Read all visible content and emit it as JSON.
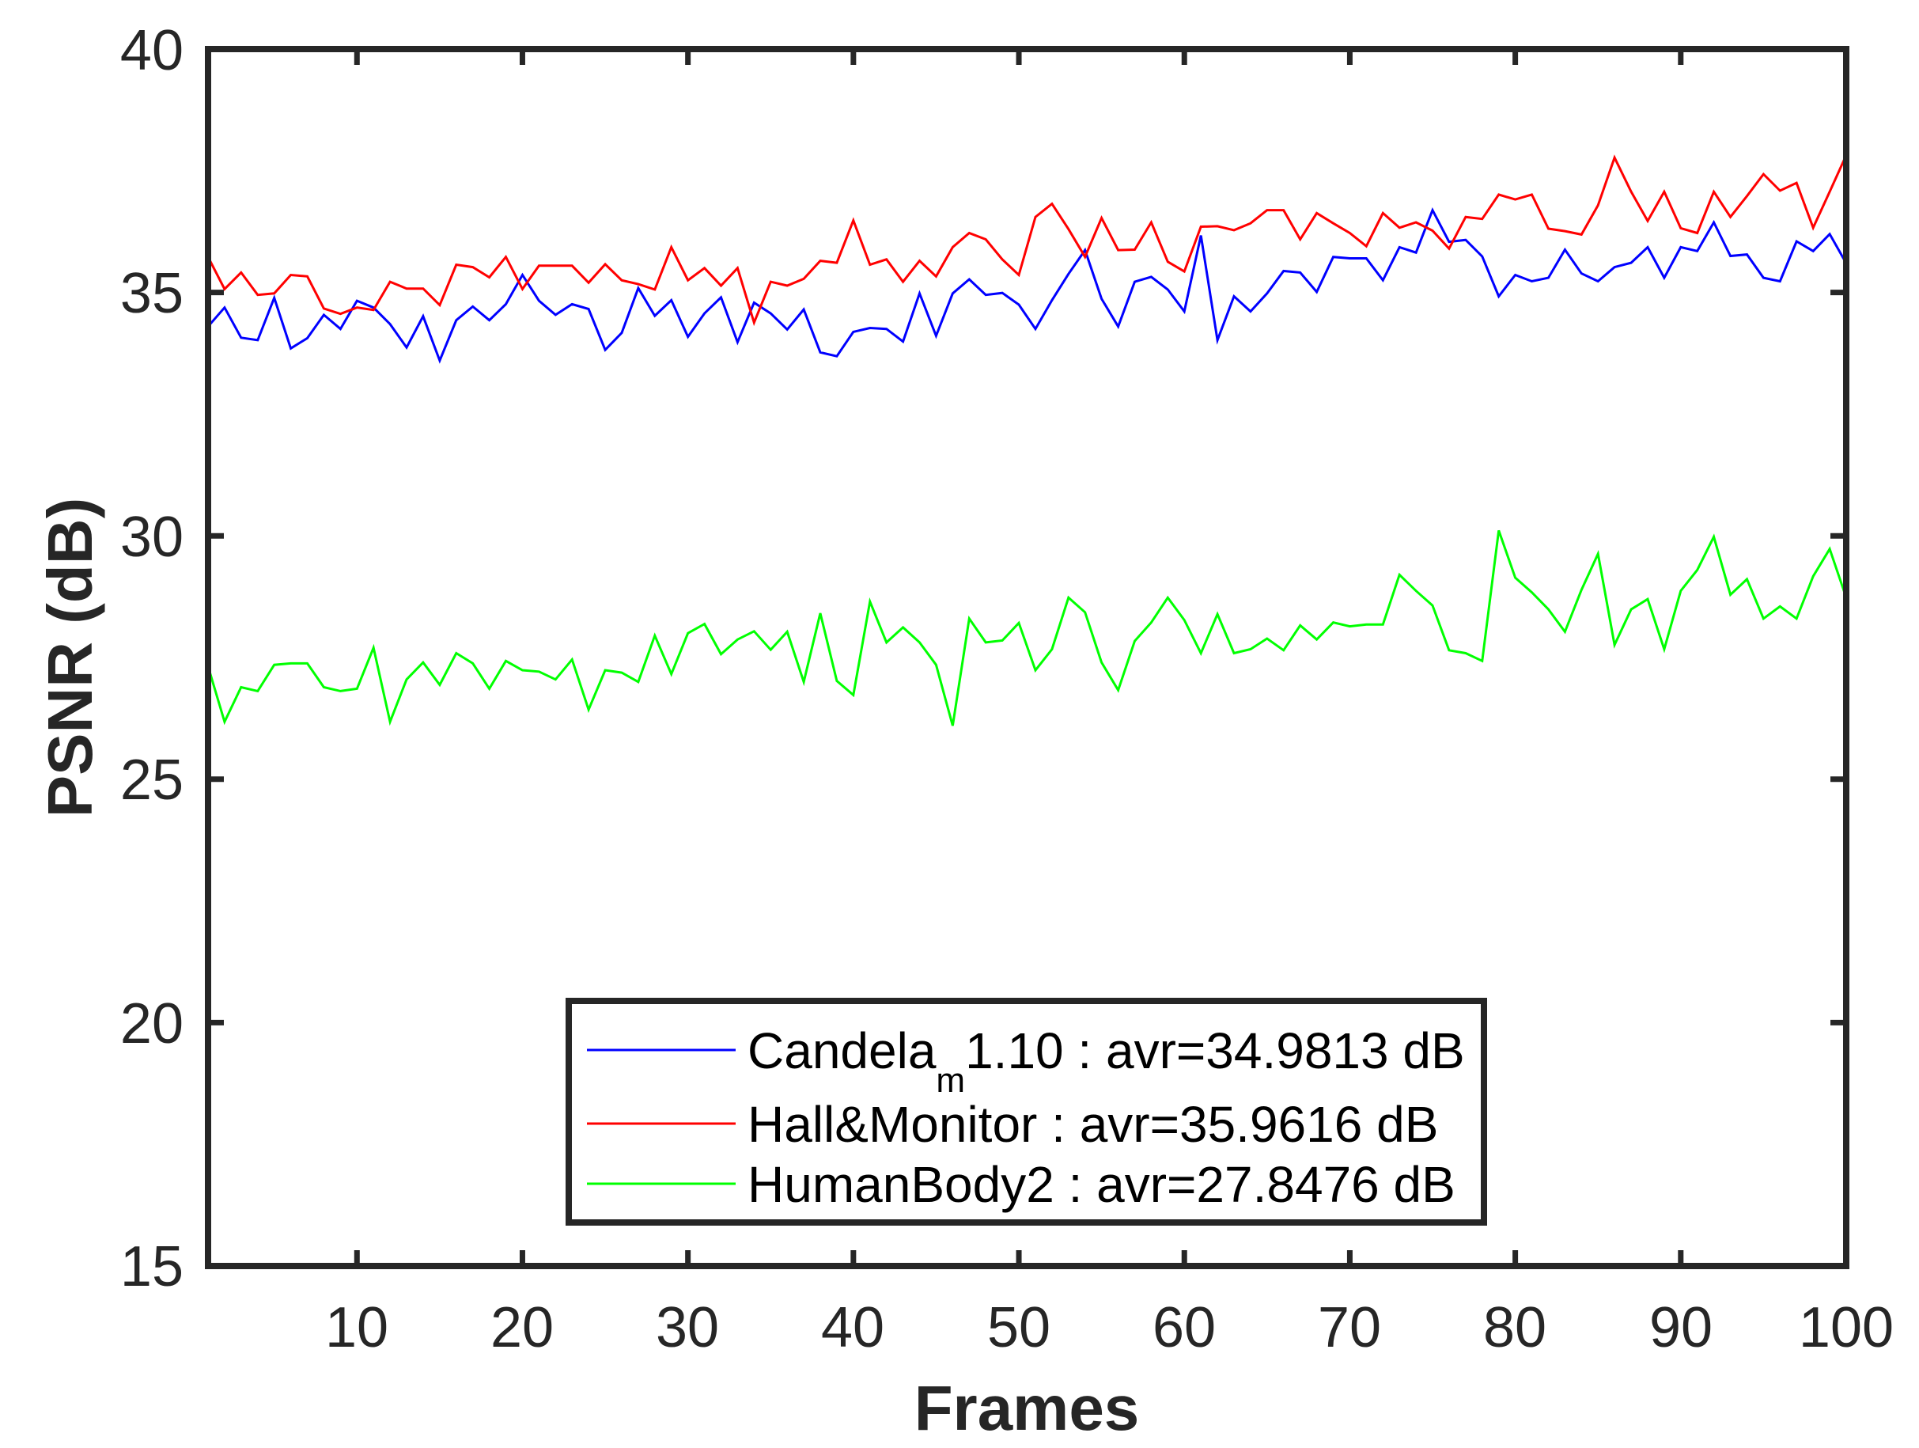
{
  "chart_data": {
    "type": "line",
    "title": "",
    "xlabel": "Frames",
    "ylabel": "PSNR (dB)",
    "xlim": [
      1,
      100
    ],
    "ylim": [
      15,
      40
    ],
    "grid": false,
    "legend_position": "lower center (inside axes)",
    "x_ticks": [
      10,
      20,
      30,
      40,
      50,
      60,
      70,
      80,
      90,
      100
    ],
    "y_ticks": [
      15,
      20,
      25,
      30,
      35,
      40
    ],
    "x_start": 1,
    "series": [
      {
        "name": "Candela_m1.10",
        "legend_label": "Candela_m1.10 : avr=34.9813 dB",
        "legend_main": "Candela",
        "legend_sub": "m",
        "legend_rest": "1.10 : avr=34.9813 dB",
        "average": 34.9813,
        "color": "#0000ff",
        "values": [
          34.3,
          34.69,
          34.07,
          34.02,
          34.89,
          33.85,
          34.06,
          34.54,
          34.25,
          34.83,
          34.69,
          34.35,
          33.87,
          34.51,
          33.6,
          34.43,
          34.71,
          34.43,
          34.76,
          35.36,
          34.83,
          34.54,
          34.76,
          34.66,
          33.82,
          34.17,
          35.09,
          34.52,
          34.84,
          34.09,
          34.57,
          34.9,
          33.98,
          34.79,
          34.57,
          34.24,
          34.65,
          33.77,
          33.69,
          34.19,
          34.27,
          34.25,
          33.99,
          34.98,
          34.11,
          34.98,
          35.27,
          34.95,
          34.99,
          34.75,
          34.25,
          34.84,
          35.38,
          35.87,
          34.87,
          34.3,
          35.22,
          35.32,
          35.06,
          34.61,
          36.17,
          34.02,
          34.92,
          34.61,
          34.98,
          35.44,
          35.41,
          35.01,
          35.73,
          35.7,
          35.7,
          35.25,
          35.93,
          35.82,
          36.69,
          36.04,
          36.08,
          35.74,
          34.92,
          35.36,
          35.23,
          35.3,
          35.88,
          35.39,
          35.23,
          35.52,
          35.61,
          35.93,
          35.3,
          35.93,
          35.85,
          36.44,
          35.75,
          35.78,
          35.3,
          35.23,
          36.05,
          35.85,
          36.2,
          35.6
        ]
      },
      {
        "name": "Hall&Monitor",
        "legend_label": "Hall&Monitor : avr=35.9616 dB",
        "legend_main": "Hall&Monitor : avr=35.9616 dB",
        "legend_sub": "",
        "legend_rest": "",
        "average": 35.9616,
        "color": "#ff0000",
        "values": [
          35.73,
          35.07,
          35.41,
          34.95,
          34.98,
          35.36,
          35.33,
          34.67,
          34.56,
          34.69,
          34.64,
          35.22,
          35.08,
          35.08,
          34.74,
          35.57,
          35.52,
          35.31,
          35.73,
          35.07,
          35.55,
          35.55,
          35.55,
          35.2,
          35.58,
          35.25,
          35.17,
          35.06,
          35.93,
          35.25,
          35.5,
          35.14,
          35.5,
          34.38,
          35.22,
          35.14,
          35.28,
          35.65,
          35.61,
          36.48,
          35.57,
          35.68,
          35.22,
          35.65,
          35.33,
          35.93,
          36.22,
          36.09,
          35.68,
          35.36,
          36.55,
          36.82,
          36.3,
          35.73,
          36.53,
          35.87,
          35.88,
          36.44,
          35.63,
          35.43,
          36.35,
          36.36,
          36.28,
          36.42,
          36.69,
          36.69,
          36.09,
          36.63,
          36.42,
          36.22,
          35.95,
          36.63,
          36.33,
          36.44,
          36.27,
          35.9,
          36.55,
          36.51,
          37.01,
          36.91,
          37.01,
          36.31,
          36.26,
          36.19,
          36.79,
          37.77,
          37.07,
          36.47,
          37.07,
          36.32,
          36.22,
          37.07,
          36.55,
          36.98,
          37.43,
          37.09,
          37.25,
          36.33,
          37.07,
          37.82
        ]
      },
      {
        "name": "HumanBody2",
        "legend_label": "HumanBody2 : avr=27.8476 dB",
        "legend_main": "HumanBody2 : avr=27.8476 dB",
        "legend_sub": "",
        "legend_rest": "",
        "average": 27.8476,
        "color": "#00ff00",
        "values": [
          27.32,
          26.18,
          26.89,
          26.81,
          27.35,
          27.38,
          27.38,
          26.89,
          26.81,
          26.86,
          27.7,
          26.18,
          27.05,
          27.4,
          26.94,
          27.59,
          27.38,
          26.86,
          27.43,
          27.24,
          27.21,
          27.05,
          27.46,
          26.43,
          27.24,
          27.19,
          27.0,
          27.95,
          27.16,
          28.0,
          28.19,
          27.57,
          27.87,
          28.04,
          27.66,
          28.03,
          27.0,
          28.41,
          27.02,
          26.73,
          28.65,
          27.81,
          28.12,
          27.81,
          27.35,
          26.1,
          28.3,
          27.81,
          27.85,
          28.21,
          27.24,
          27.67,
          28.73,
          28.43,
          27.4,
          26.83,
          27.84,
          28.22,
          28.73,
          28.27,
          27.59,
          28.39,
          27.59,
          27.67,
          27.89,
          27.65,
          28.16,
          27.87,
          28.22,
          28.14,
          28.18,
          28.18,
          29.2,
          28.87,
          28.57,
          27.65,
          27.59,
          27.43,
          30.11,
          29.14,
          28.84,
          28.49,
          28.03,
          28.89,
          29.63,
          27.76,
          28.49,
          28.7,
          27.67,
          28.87,
          29.3,
          29.98,
          28.79,
          29.11,
          28.3,
          28.55,
          28.3,
          29.17,
          29.73,
          28.73
        ]
      }
    ]
  },
  "axes": {
    "x_tick_labels": [
      "10",
      "20",
      "30",
      "40",
      "50",
      "60",
      "70",
      "80",
      "90",
      "100"
    ],
    "y_tick_labels": [
      "40",
      "35",
      "30",
      "25",
      "20",
      "15"
    ]
  },
  "colors": {
    "axis": "#262626",
    "background": "#ffffff"
  }
}
